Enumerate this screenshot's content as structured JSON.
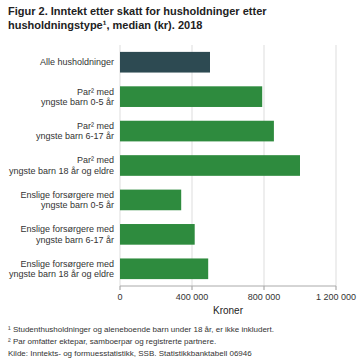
{
  "chart_data": {
    "type": "bar",
    "orientation": "horizontal",
    "title": "Figur 2. Inntekt etter skatt for husholdninger etter\nhusholdningstype¹, median (kr).  2018",
    "categories": [
      "Alle husholdninger",
      "Par² med\nyngste barn 0-5 år",
      "Par² med\nyngste barn 6-17 år",
      "Par² med\nyngste barn 18 år og eldre",
      "Enslige forsørgere med\nyngste barn 0-5 år",
      "Enslige forsørgere med\nyngste barn 6-17 år",
      "Enslige forsørgere med\nyngste barn 18 år og eldre"
    ],
    "values": [
      500000,
      790000,
      855000,
      1000000,
      340000,
      415000,
      490000
    ],
    "colors": [
      "#2d4a52",
      "#2e8b3e",
      "#2e8b3e",
      "#2e8b3e",
      "#2e8b3e",
      "#2e8b3e",
      "#2e8b3e"
    ],
    "xlim": [
      0,
      1200000
    ],
    "xticks": [
      0,
      {
        "value": 400000,
        "label": "400 000"
      },
      {
        "value": 800000,
        "label": "800 000"
      },
      {
        "value": 1200000,
        "label": "1 200 000"
      }
    ],
    "xlabel": "Kroner",
    "grid": true,
    "annotations": [
      "¹ Studenthusholdninger og aleneboende barn under 18 år, er ikke inkludert.",
      "² Par omfatter ektepar, samboerpar og registrerte partnere.",
      "Kilde: Inntekts- og formuesstatistikk, SSB. Statistikkbanktabell 06946"
    ]
  }
}
